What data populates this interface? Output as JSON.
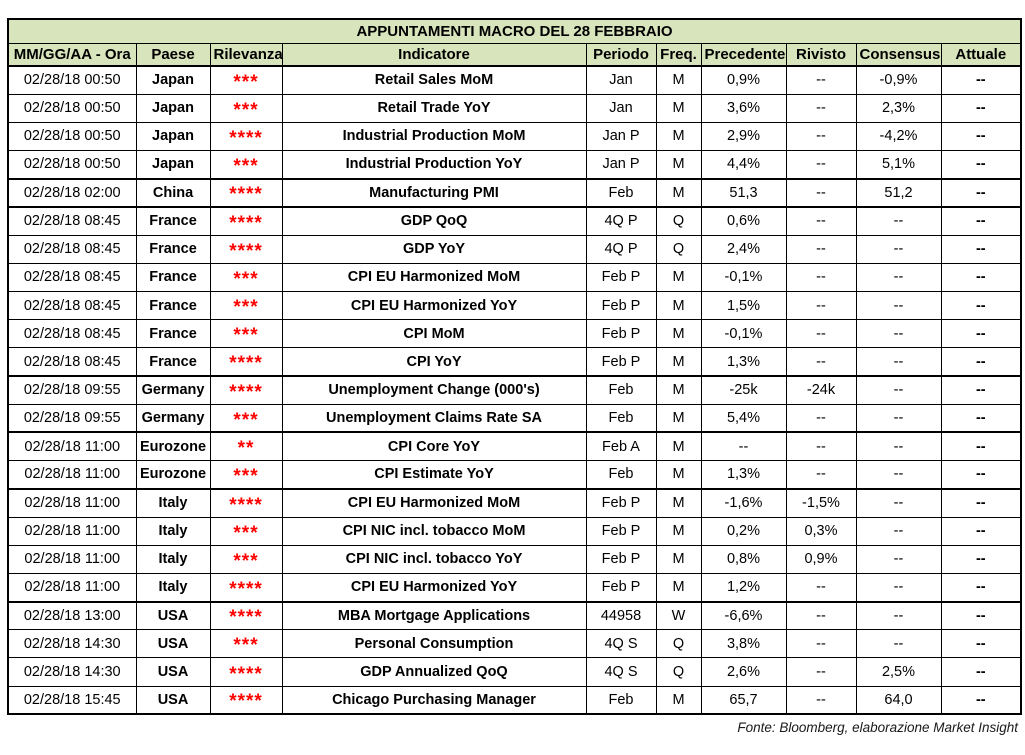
{
  "title": "APPUNTAMENTI MACRO DEL 28 FEBBRAIO",
  "columns": [
    "MM/GG/AA - Ora",
    "Paese",
    "Rilevanza",
    "Indicatore",
    "Periodo",
    "Freq.",
    "Precedente",
    "Rivisto",
    "Consensus",
    "Attuale"
  ],
  "footer": "Fonte: Bloomberg, elaborazione Market Insight",
  "colors": {
    "header_bg": "#d8e4bc",
    "star_red": "#ff0000",
    "border": "#000000"
  },
  "rows": [
    {
      "datetime": "02/28/18 00:50",
      "country": "Japan",
      "stars": "***",
      "indicator": "Retail Sales MoM",
      "period": "Jan",
      "freq": "M",
      "previous": "0,9%",
      "revised": "--",
      "consensus": "-0,9%",
      "actual": "--",
      "group_start": false
    },
    {
      "datetime": "02/28/18 00:50",
      "country": "Japan",
      "stars": "***",
      "indicator": "Retail Trade YoY",
      "period": "Jan",
      "freq": "M",
      "previous": "3,6%",
      "revised": "--",
      "consensus": "2,3%",
      "actual": "--",
      "group_start": false
    },
    {
      "datetime": "02/28/18 00:50",
      "country": "Japan",
      "stars": "****",
      "indicator": "Industrial Production MoM",
      "period": "Jan P",
      "freq": "M",
      "previous": "2,9%",
      "revised": "--",
      "consensus": "-4,2%",
      "actual": "--",
      "group_start": false
    },
    {
      "datetime": "02/28/18 00:50",
      "country": "Japan",
      "stars": "***",
      "indicator": "Industrial Production YoY",
      "period": "Jan P",
      "freq": "M",
      "previous": "4,4%",
      "revised": "--",
      "consensus": "5,1%",
      "actual": "--",
      "group_start": false
    },
    {
      "datetime": "02/28/18 02:00",
      "country": "China",
      "stars": "****",
      "indicator": "Manufacturing PMI",
      "period": "Feb",
      "freq": "M",
      "previous": "51,3",
      "revised": "--",
      "consensus": "51,2",
      "actual": "--",
      "group_start": true
    },
    {
      "datetime": "02/28/18 08:45",
      "country": "France",
      "stars": "****",
      "indicator": "GDP QoQ",
      "period": "4Q P",
      "freq": "Q",
      "previous": "0,6%",
      "revised": "--",
      "consensus": "--",
      "actual": "--",
      "group_start": true
    },
    {
      "datetime": "02/28/18 08:45",
      "country": "France",
      "stars": "****",
      "indicator": "GDP YoY",
      "period": "4Q P",
      "freq": "Q",
      "previous": "2,4%",
      "revised": "--",
      "consensus": "--",
      "actual": "--",
      "group_start": false
    },
    {
      "datetime": "02/28/18 08:45",
      "country": "France",
      "stars": "***",
      "indicator": "CPI EU Harmonized MoM",
      "period": "Feb P",
      "freq": "M",
      "previous": "-0,1%",
      "revised": "--",
      "consensus": "--",
      "actual": "--",
      "group_start": false
    },
    {
      "datetime": "02/28/18 08:45",
      "country": "France",
      "stars": "***",
      "indicator": "CPI EU Harmonized YoY",
      "period": "Feb P",
      "freq": "M",
      "previous": "1,5%",
      "revised": "--",
      "consensus": "--",
      "actual": "--",
      "group_start": false
    },
    {
      "datetime": "02/28/18 08:45",
      "country": "France",
      "stars": "***",
      "indicator": "CPI MoM",
      "period": "Feb P",
      "freq": "M",
      "previous": "-0,1%",
      "revised": "--",
      "consensus": "--",
      "actual": "--",
      "group_start": false
    },
    {
      "datetime": "02/28/18 08:45",
      "country": "France",
      "stars": "****",
      "indicator": "CPI YoY",
      "period": "Feb P",
      "freq": "M",
      "previous": "1,3%",
      "revised": "--",
      "consensus": "--",
      "actual": "--",
      "group_start": false
    },
    {
      "datetime": "02/28/18 09:55",
      "country": "Germany",
      "stars": "****",
      "indicator": "Unemployment Change (000's)",
      "period": "Feb",
      "freq": "M",
      "previous": "-25k",
      "revised": "-24k",
      "consensus": "--",
      "actual": "--",
      "group_start": true
    },
    {
      "datetime": "02/28/18 09:55",
      "country": "Germany",
      "stars": "***",
      "indicator": "Unemployment Claims Rate SA",
      "period": "Feb",
      "freq": "M",
      "previous": "5,4%",
      "revised": "--",
      "consensus": "--",
      "actual": "--",
      "group_start": false
    },
    {
      "datetime": "02/28/18 11:00",
      "country": "Eurozone",
      "stars": "**",
      "indicator": "CPI Core YoY",
      "period": "Feb A",
      "freq": "M",
      "previous": "--",
      "revised": "--",
      "consensus": "--",
      "actual": "--",
      "group_start": true
    },
    {
      "datetime": "02/28/18 11:00",
      "country": "Eurozone",
      "stars": "***",
      "indicator": "CPI Estimate YoY",
      "period": "Feb",
      "freq": "M",
      "previous": "1,3%",
      "revised": "--",
      "consensus": "--",
      "actual": "--",
      "group_start": false
    },
    {
      "datetime": "02/28/18 11:00",
      "country": "Italy",
      "stars": "****",
      "indicator": "CPI EU Harmonized MoM",
      "period": "Feb P",
      "freq": "M",
      "previous": "-1,6%",
      "revised": "-1,5%",
      "consensus": "--",
      "actual": "--",
      "group_start": true
    },
    {
      "datetime": "02/28/18 11:00",
      "country": "Italy",
      "stars": "***",
      "indicator": "CPI NIC incl. tobacco MoM",
      "period": "Feb P",
      "freq": "M",
      "previous": "0,2%",
      "revised": "0,3%",
      "consensus": "--",
      "actual": "--",
      "group_start": false
    },
    {
      "datetime": "02/28/18 11:00",
      "country": "Italy",
      "stars": "***",
      "indicator": "CPI NIC incl. tobacco YoY",
      "period": "Feb P",
      "freq": "M",
      "previous": "0,8%",
      "revised": "0,9%",
      "consensus": "--",
      "actual": "--",
      "group_start": false
    },
    {
      "datetime": "02/28/18 11:00",
      "country": "Italy",
      "stars": "****",
      "indicator": "CPI EU Harmonized YoY",
      "period": "Feb P",
      "freq": "M",
      "previous": "1,2%",
      "revised": "--",
      "consensus": "--",
      "actual": "--",
      "group_start": false
    },
    {
      "datetime": "02/28/18 13:00",
      "country": "USA",
      "stars": "****",
      "indicator": "MBA Mortgage Applications",
      "period": "44958",
      "freq": "W",
      "previous": "-6,6%",
      "revised": "--",
      "consensus": "--",
      "actual": "--",
      "group_start": true
    },
    {
      "datetime": "02/28/18 14:30",
      "country": "USA",
      "stars": "***",
      "indicator": "Personal Consumption",
      "period": "4Q S",
      "freq": "Q",
      "previous": "3,8%",
      "revised": "--",
      "consensus": "--",
      "actual": "--",
      "group_start": false
    },
    {
      "datetime": "02/28/18 14:30",
      "country": "USA",
      "stars": "****",
      "indicator": "GDP Annualized QoQ",
      "period": "4Q S",
      "freq": "Q",
      "previous": "2,6%",
      "revised": "--",
      "consensus": "2,5%",
      "actual": "--",
      "group_start": false
    },
    {
      "datetime": "02/28/18 15:45",
      "country": "USA",
      "stars": "****",
      "indicator": "Chicago Purchasing Manager",
      "period": "Feb",
      "freq": "M",
      "previous": "65,7",
      "revised": "--",
      "consensus": "64,0",
      "actual": "--",
      "group_start": false
    }
  ]
}
